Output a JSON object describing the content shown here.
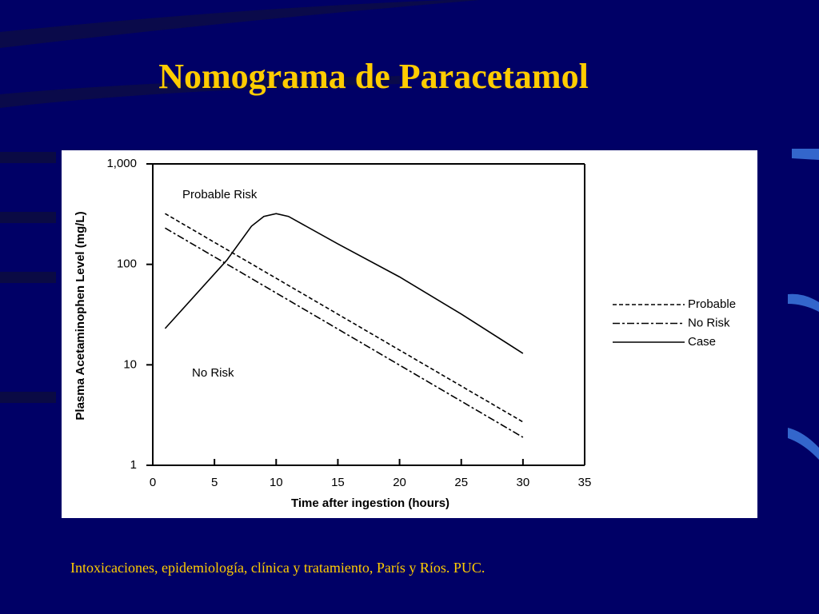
{
  "slide": {
    "title": "Nomograma de Paracetamol",
    "footer": "Intoxicaciones, epidemiología, clínica y tratamiento, París y Ríos. PUC."
  },
  "chart_data": {
    "type": "line",
    "xlabel": "Time after ingestion  (hours)",
    "ylabel": "Plasma Acetaminophen Level (mg/L)",
    "annotations": [
      "Probable Risk",
      "No Risk"
    ],
    "xlim": [
      0,
      35
    ],
    "xticks": [
      0,
      5,
      10,
      15,
      20,
      25,
      30,
      35
    ],
    "ylim": [
      1,
      1000
    ],
    "yticks": [
      1,
      10,
      100,
      {
        "value": 1000,
        "label": "1,000"
      }
    ],
    "log_y": true,
    "legend": "right",
    "series": [
      {
        "name": "Probable",
        "color": "#000000",
        "dash": "dashed",
        "x": [
          1,
          30
        ],
        "values": [
          320,
          2.7
        ]
      },
      {
        "name": "No Risk",
        "color": "#000000",
        "dash": "dashdot",
        "x": [
          1,
          30
        ],
        "values": [
          230,
          1.9
        ]
      },
      {
        "name": "Case",
        "color": "#000000",
        "dash": "solid",
        "x": [
          1,
          6,
          8,
          9,
          10,
          11,
          15,
          20,
          25,
          30
        ],
        "values": [
          23,
          110,
          240,
          300,
          320,
          300,
          160,
          75,
          32,
          13
        ]
      }
    ]
  }
}
